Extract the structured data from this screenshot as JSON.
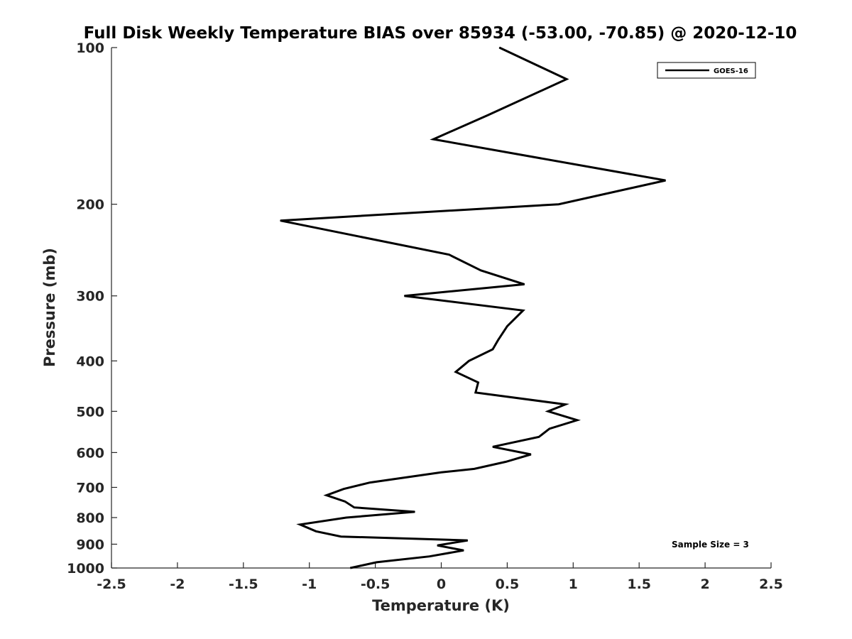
{
  "chart_data": {
    "type": "line",
    "title": "Full Disk Weekly Temperature BIAS over 85934 (-53.00, -70.85) @ 2020-12-10",
    "xlabel": "Temperature (K)",
    "ylabel": "Pressure (mb)",
    "xlim": [
      -2.5,
      2.5
    ],
    "ylim": [
      100,
      1000
    ],
    "y_scale": "log",
    "y_reversed": true,
    "x_ticks": [
      -2.5,
      -2,
      -1.5,
      -1,
      -0.5,
      0,
      0.5,
      1,
      1.5,
      2,
      2.5
    ],
    "x_tick_labels": [
      "-2.5",
      "-2",
      "-1.5",
      "-1",
      "-0.5",
      "0",
      "0.5",
      "1",
      "1.5",
      "2",
      "2.5"
    ],
    "y_ticks": [
      100,
      200,
      300,
      400,
      500,
      600,
      700,
      800,
      900,
      1000
    ],
    "y_tick_labels": [
      "100",
      "200",
      "300",
      "400",
      "500",
      "600",
      "700",
      "800",
      "900",
      "1000"
    ],
    "grid": false,
    "legend_position": "top-right",
    "series": [
      {
        "name": "GOES-16",
        "color": "#000000",
        "points": [
          {
            "x": 0.44,
            "y": 100
          },
          {
            "x": 0.95,
            "y": 115
          },
          {
            "x": 0.35,
            "y": 135
          },
          {
            "x": -0.06,
            "y": 150
          },
          {
            "x": 1.7,
            "y": 180
          },
          {
            "x": 0.89,
            "y": 200
          },
          {
            "x": -1.22,
            "y": 215
          },
          {
            "x": 0.06,
            "y": 250
          },
          {
            "x": 0.3,
            "y": 268
          },
          {
            "x": 0.63,
            "y": 285
          },
          {
            "x": -0.28,
            "y": 300
          },
          {
            "x": 0.62,
            "y": 320
          },
          {
            "x": 0.5,
            "y": 343
          },
          {
            "x": 0.43,
            "y": 365
          },
          {
            "x": 0.39,
            "y": 380
          },
          {
            "x": 0.21,
            "y": 400
          },
          {
            "x": 0.11,
            "y": 420
          },
          {
            "x": 0.28,
            "y": 440
          },
          {
            "x": 0.26,
            "y": 460
          },
          {
            "x": 0.94,
            "y": 485
          },
          {
            "x": 0.81,
            "y": 500
          },
          {
            "x": 1.03,
            "y": 520
          },
          {
            "x": 0.82,
            "y": 540
          },
          {
            "x": 0.74,
            "y": 560
          },
          {
            "x": 0.39,
            "y": 585
          },
          {
            "x": 0.68,
            "y": 605
          },
          {
            "x": 0.49,
            "y": 625
          },
          {
            "x": 0.25,
            "y": 645
          },
          {
            "x": 0.0,
            "y": 655
          },
          {
            "x": -0.54,
            "y": 685
          },
          {
            "x": -0.74,
            "y": 705
          },
          {
            "x": -0.87,
            "y": 725
          },
          {
            "x": -0.73,
            "y": 745
          },
          {
            "x": -0.66,
            "y": 765
          },
          {
            "x": -0.2,
            "y": 780
          },
          {
            "x": -0.72,
            "y": 800
          },
          {
            "x": -1.07,
            "y": 825
          },
          {
            "x": -0.95,
            "y": 850
          },
          {
            "x": -0.76,
            "y": 870
          },
          {
            "x": 0.2,
            "y": 885
          },
          {
            "x": -0.03,
            "y": 905
          },
          {
            "x": 0.17,
            "y": 925
          },
          {
            "x": -0.09,
            "y": 950
          },
          {
            "x": -0.49,
            "y": 975
          },
          {
            "x": -0.69,
            "y": 1000
          }
        ]
      }
    ],
    "annotations": [
      "Sample Size = 3"
    ]
  }
}
